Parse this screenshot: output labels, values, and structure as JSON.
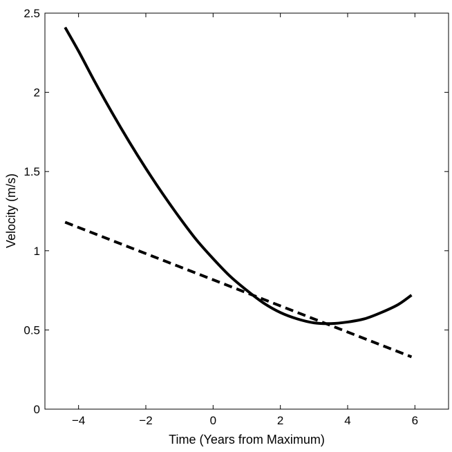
{
  "chart_data": {
    "type": "line",
    "title": "",
    "xlabel": "Time (Years from Maximum)",
    "ylabel": "Velocity (m/s)",
    "xlim": [
      -5,
      7
    ],
    "ylim": [
      0,
      2.5
    ],
    "xticks": [
      -4,
      -2,
      0,
      2,
      4,
      6
    ],
    "yticks": [
      0,
      0.5,
      1,
      1.5,
      2,
      2.5
    ],
    "xtick_labels": [
      "−4",
      "−2",
      "0",
      "2",
      "4",
      "6"
    ],
    "ytick_labels": [
      "0",
      "0.5",
      "1",
      "1.5",
      "2",
      "2.5"
    ],
    "grid": false,
    "legend": "none",
    "series": [
      {
        "style": "solid",
        "color": "#000000",
        "x": [
          -4.4,
          -4.0,
          -3.5,
          -3.0,
          -2.5,
          -2.0,
          -1.5,
          -1.0,
          -0.5,
          0.0,
          0.5,
          1.0,
          1.5,
          2.0,
          2.5,
          3.0,
          3.5,
          4.0,
          4.5,
          5.0,
          5.5,
          5.9
        ],
        "y": [
          2.41,
          2.26,
          2.06,
          1.87,
          1.69,
          1.52,
          1.36,
          1.21,
          1.07,
          0.95,
          0.84,
          0.75,
          0.67,
          0.61,
          0.57,
          0.545,
          0.54,
          0.55,
          0.57,
          0.61,
          0.66,
          0.72
        ]
      },
      {
        "style": "dashed",
        "color": "#000000",
        "x": [
          -4.4,
          5.9
        ],
        "y": [
          1.18,
          0.33
        ]
      }
    ]
  }
}
